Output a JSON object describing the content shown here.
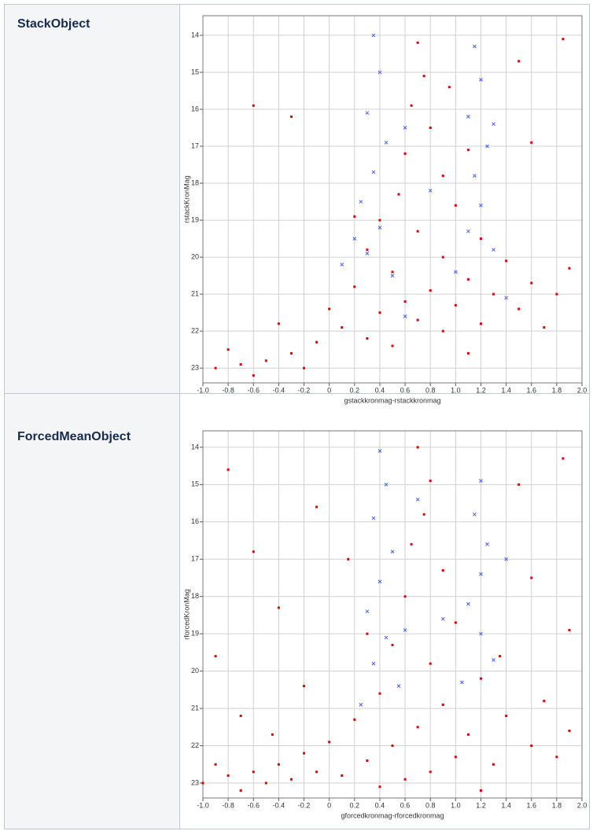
{
  "rows": [
    {
      "label": "StackObject"
    },
    {
      "label": "ForcedMeanObject"
    }
  ],
  "chart_data": [
    {
      "type": "scatter",
      "ylabel": "rstackKronMag",
      "xlabel": "gstackkronmag-rstackkronmag",
      "xlim": [
        -1.0,
        2.0
      ],
      "ylim": [
        23.4,
        13.47
      ],
      "xticks": [
        {
          "value": -1.0,
          "label": "-1.0"
        },
        -0.8,
        -0.6,
        -0.4,
        -0.2,
        0,
        0.2,
        0.4,
        0.6,
        0.8,
        {
          "value": 1.0,
          "label": "1.0"
        },
        1.2,
        1.4,
        1.6,
        1.8,
        {
          "value": 2.0,
          "label": "2.0"
        }
      ],
      "yticks": [
        14,
        15,
        16,
        17,
        18,
        19,
        20,
        21,
        22,
        23
      ],
      "grid": true,
      "series": [
        {
          "color": "#dd0000",
          "marker": "square",
          "x": [
            0.7,
            0.75,
            0.65,
            0.8,
            0.6,
            0.9,
            0.55,
            1.0,
            0.4,
            0.7,
            1.2,
            0.3,
            0.9,
            1.4,
            0.5,
            1.1,
            0.2,
            0.8,
            1.3,
            1.6,
            0.6,
            1.0,
            0.4,
            1.5,
            0.7,
            0.1,
            1.2,
            0.9,
            0.3,
            0.5,
            -0.1,
            -0.3,
            -0.5,
            -0.7,
            -0.9,
            -0.8,
            -0.6,
            -0.2,
            1.8,
            1.9,
            1.7,
            1.1,
            0.0,
            -0.4,
            0.2,
            -0.6,
            1.5,
            1.85,
            -0.3,
            1.6,
            0.95,
            1.1
          ],
          "values": [
            14.2,
            15.1,
            15.9,
            16.5,
            17.2,
            17.8,
            18.3,
            18.6,
            19.0,
            19.3,
            19.5,
            19.8,
            20.0,
            20.1,
            20.4,
            20.6,
            20.8,
            20.9,
            21.0,
            20.7,
            21.2,
            21.3,
            21.5,
            21.4,
            21.7,
            21.9,
            21.8,
            22.0,
            22.2,
            22.4,
            22.3,
            22.6,
            22.8,
            22.9,
            23.0,
            22.5,
            23.2,
            23.0,
            21.0,
            20.3,
            21.9,
            22.6,
            21.4,
            21.8,
            18.9,
            15.9,
            14.7,
            14.1,
            16.2,
            16.9,
            15.4,
            17.1
          ]
        },
        {
          "color": "#4060f0",
          "marker": "x",
          "x": [
            0.35,
            0.4,
            0.3,
            0.45,
            0.35,
            0.25,
            0.4,
            0.3,
            0.5,
            1.15,
            1.2,
            1.1,
            1.25,
            1.15,
            1.2,
            1.1,
            1.3,
            1.0,
            0.8,
            0.6,
            0.2,
            1.4,
            0.6,
            0.1,
            1.3
          ],
          "values": [
            14.0,
            15.0,
            16.1,
            16.9,
            17.7,
            18.5,
            19.2,
            19.9,
            20.5,
            14.3,
            15.2,
            16.2,
            17.0,
            17.8,
            18.6,
            19.3,
            19.8,
            20.4,
            18.2,
            16.5,
            19.5,
            21.1,
            21.6,
            20.2,
            16.4
          ]
        }
      ]
    },
    {
      "type": "scatter",
      "ylabel": "rforcedKronMag",
      "xlabel": "gforcedkronmag-rforcedkronmag",
      "xlim": [
        -1.0,
        2.0
      ],
      "ylim": [
        23.4,
        13.56
      ],
      "xticks": [
        {
          "value": -1.0,
          "label": "-1.0"
        },
        -0.8,
        -0.6,
        -0.4,
        -0.2,
        0,
        0.2,
        0.4,
        0.6,
        0.8,
        {
          "value": 1.0,
          "label": "1.0"
        },
        1.2,
        1.4,
        1.6,
        1.8,
        {
          "value": 2.0,
          "label": "2.0"
        }
      ],
      "yticks": [
        14,
        15,
        16,
        17,
        18,
        19,
        20,
        21,
        22,
        23
      ],
      "grid": true,
      "series": [
        {
          "color": "#dd0000",
          "marker": "square",
          "x": [
            0.7,
            0.8,
            0.75,
            0.65,
            0.9,
            0.6,
            1.0,
            0.5,
            0.8,
            1.2,
            0.4,
            0.9,
            1.4,
            0.2,
            0.7,
            1.1,
            0.0,
            0.5,
            1.6,
            -0.2,
            0.3,
            1.0,
            -0.4,
            -0.6,
            -0.8,
            -1.0,
            -0.9,
            -0.7,
            -0.5,
            -0.3,
            -0.1,
            0.1,
            0.4,
            0.8,
            1.3,
            1.8,
            1.9,
            1.7,
            -0.8,
            -0.6,
            -0.4,
            -0.9,
            -0.2,
            -0.7,
            1.5,
            1.85,
            1.6,
            1.9,
            0.15,
            -0.1,
            1.2,
            0.6,
            -0.45,
            0.3,
            1.35
          ],
          "values": [
            14.0,
            14.9,
            15.8,
            16.6,
            17.3,
            18.0,
            18.7,
            19.3,
            19.8,
            20.2,
            20.6,
            20.9,
            21.2,
            21.3,
            21.5,
            21.7,
            21.9,
            22.0,
            22.0,
            22.2,
            22.4,
            22.3,
            22.5,
            22.7,
            22.8,
            23.0,
            22.5,
            23.2,
            23.0,
            22.9,
            22.7,
            22.8,
            23.1,
            22.7,
            22.5,
            22.3,
            21.6,
            20.8,
            14.6,
            16.8,
            18.3,
            19.6,
            20.4,
            21.2,
            15.0,
            14.3,
            17.5,
            18.9,
            17.0,
            15.6,
            23.2,
            22.9,
            21.7,
            19.0,
            19.6
          ]
        },
        {
          "color": "#4060f0",
          "marker": "x",
          "x": [
            0.4,
            0.45,
            0.35,
            0.5,
            0.4,
            0.3,
            0.45,
            0.35,
            0.55,
            1.2,
            1.15,
            1.25,
            1.2,
            1.1,
            1.2,
            1.3,
            1.05,
            0.7,
            0.9,
            0.25,
            1.4,
            0.6
          ],
          "values": [
            14.1,
            15.0,
            15.9,
            16.8,
            17.6,
            18.4,
            19.1,
            19.8,
            20.4,
            14.9,
            15.8,
            16.6,
            17.4,
            18.2,
            19.0,
            19.7,
            20.3,
            15.4,
            18.6,
            20.9,
            17.0,
            18.9
          ]
        }
      ]
    }
  ]
}
